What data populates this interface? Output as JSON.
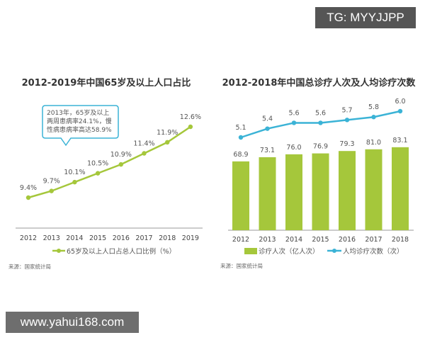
{
  "watermarks": {
    "top": "TG: MYYJJPP",
    "bottom": "www.yahui168.com"
  },
  "chart_data": [
    {
      "type": "line",
      "title": "2012-2019年中国65岁及以上人口占比",
      "categories": [
        "2012",
        "2013",
        "2014",
        "2015",
        "2016",
        "2017",
        "2018",
        "2019"
      ],
      "series": [
        {
          "name": "65岁及以上人口占总人口比例（%）",
          "values": [
            9.4,
            9.7,
            10.1,
            10.5,
            10.9,
            11.4,
            11.9,
            12.6
          ],
          "color": "#a5c73b"
        }
      ],
      "data_labels": [
        "9.4%",
        "9.7%",
        "10.1%",
        "10.5%",
        "10.9%",
        "11.4%",
        "11.9%",
        "12.6%"
      ],
      "annotation": [
        "2013年，65岁及以上",
        "两周患病率24.1%，慢",
        "性病患病率高达58.9%"
      ],
      "annotation_color": "#3bb3d6",
      "source": "来源：国家统计局",
      "grid": false,
      "legend": "bottom"
    },
    {
      "type": "bar+line",
      "title": "2012-2018年中国总诊疗人次及人均诊疗次数",
      "categories": [
        "2012",
        "2013",
        "2014",
        "2015",
        "2016",
        "2017",
        "2018"
      ],
      "series": [
        {
          "name": "诊疗人次（亿人次）",
          "type": "bar",
          "values": [
            68.9,
            73.1,
            76.0,
            76.9,
            79.3,
            81.0,
            83.1
          ],
          "color": "#a5c73b"
        },
        {
          "name": "人均诊疗次数（次）",
          "type": "line",
          "values": [
            5.1,
            5.4,
            5.6,
            5.6,
            5.7,
            5.8,
            6.0
          ],
          "color": "#3bb3d6"
        }
      ],
      "source": "来源：国家统计局",
      "grid": false,
      "legend": "bottom"
    }
  ]
}
